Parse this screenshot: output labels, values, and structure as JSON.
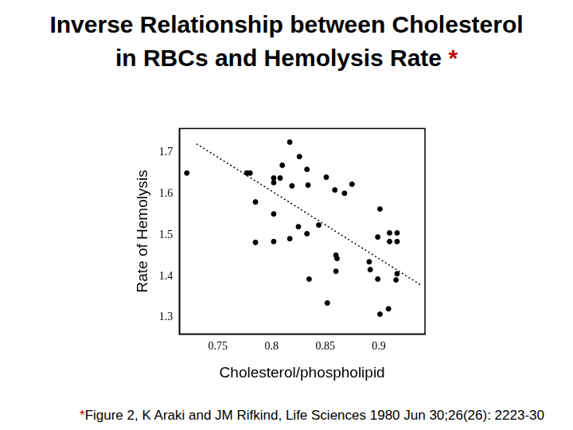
{
  "chart_data": {
    "type": "scatter",
    "title": "Inverse Relationship between Cholesterol in RBCs and Hemolysis Rate *",
    "x_label": "Cholesterol/phospholipid",
    "y_label": "Rate of Hemolysis",
    "footnote": "*Figure 2, K Araki and JM Rifkind, Life Sciences 1980 Jun 30;26(26): 2223-30",
    "xlim": [
      0.714,
      0.943
    ],
    "ylim": [
      1.26,
      1.758
    ],
    "xticks": [
      0.75,
      0.8,
      0.85,
      0.9
    ],
    "yticks": [
      1.3,
      1.4,
      1.5,
      1.6,
      1.7
    ],
    "grid": false,
    "series": [
      {
        "type": "scatter",
        "color": "#000000",
        "marker": "circle",
        "x": [
          0.721,
          0.777,
          0.78,
          0.785,
          0.785,
          0.802,
          0.802,
          0.802,
          0.802,
          0.808,
          0.81,
          0.817,
          0.817,
          0.819,
          0.826,
          0.825,
          0.833,
          0.834,
          0.833,
          0.835,
          0.844,
          0.851,
          0.852,
          0.859,
          0.86,
          0.861,
          0.86,
          0.868,
          0.875,
          0.891,
          0.892,
          0.899,
          0.901,
          0.899,
          0.901,
          0.909,
          0.91,
          0.91,
          0.917,
          0.917,
          0.917,
          0.916
        ],
        "values": [
          1.65,
          1.65,
          1.65,
          1.58,
          1.482,
          1.638,
          1.627,
          1.551,
          1.484,
          1.638,
          1.669,
          1.725,
          1.491,
          1.619,
          1.69,
          1.52,
          1.659,
          1.621,
          1.503,
          1.393,
          1.524,
          1.64,
          1.335,
          1.609,
          1.451,
          1.443,
          1.412,
          1.601,
          1.623,
          1.435,
          1.416,
          1.393,
          1.563,
          1.495,
          1.308,
          1.321,
          1.505,
          1.484,
          1.505,
          1.484,
          1.406,
          1.391
        ]
      },
      {
        "type": "line",
        "color": "#000000",
        "line_style": "dotted",
        "x": [
          0.73,
          0.939
        ],
        "values": [
          1.721,
          1.379
        ]
      }
    ]
  }
}
